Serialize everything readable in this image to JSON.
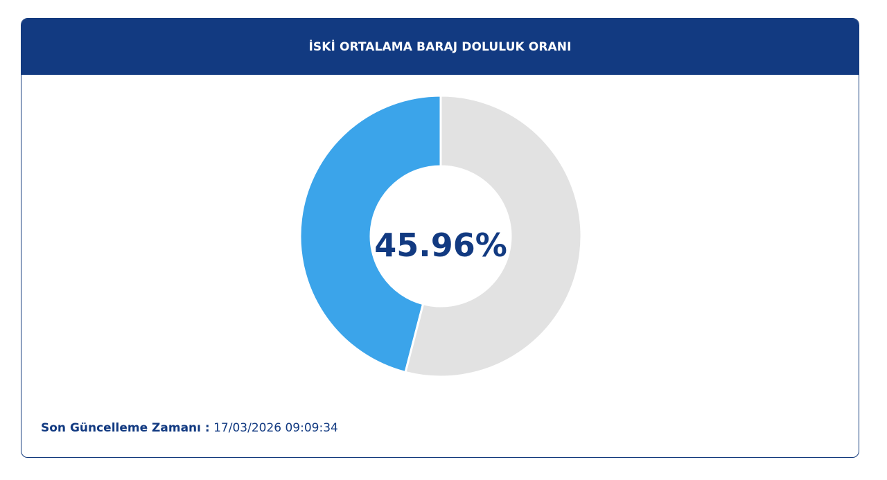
{
  "header": {
    "title": "İSKİ ORTALAMA BARAJ DOLULUK ORANI"
  },
  "chart_data": {
    "type": "pie",
    "donut": true,
    "labels": [
      "",
      ""
    ],
    "values": [
      45.96,
      54.04
    ],
    "center_label": "45.96%",
    "colors": [
      "#3ba4ea",
      "#e2e2e2"
    ]
  },
  "footer": {
    "label": "Son Güncelleme Zamanı :",
    "value": "17/03/2026 09:09:34"
  },
  "colors": {
    "header_bg": "#123a81",
    "accent_text": "#123a81",
    "filled": "#3ba4ea",
    "empty": "#e2e2e2"
  }
}
